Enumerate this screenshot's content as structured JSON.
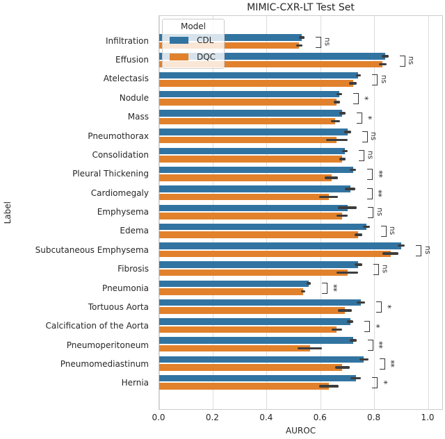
{
  "title": "MIMIC-CXR-LT Test Set",
  "colors": {
    "cdl_blue": "#3274a1",
    "dqc_orange": "#e1812c",
    "error_bar": "#3d3d3d",
    "gridline": "#dcdcdc",
    "spine": "#cccccc",
    "text": "#262626"
  },
  "chart_data": {
    "type": "bar",
    "orientation": "horizontal",
    "title": "MIMIC-CXR-LT Test Set",
    "xlabel": "AUROC",
    "ylabel": "Label",
    "xlim": [
      0.0,
      1.057
    ],
    "grid": true,
    "xticks": [
      0.0,
      0.2,
      0.4,
      0.6,
      0.8,
      1.0
    ],
    "xticklabels": [
      "0.0",
      "0.2",
      "0.4",
      "0.6",
      "0.8",
      "1.0"
    ],
    "legend": {
      "title": "Model",
      "position": "upper left",
      "entries": [
        {
          "name": "CDL",
          "color": "#3274a1"
        },
        {
          "name": "DQC",
          "color": "#e1812c"
        }
      ]
    },
    "categories": [
      "Infiltration",
      "Effusion",
      "Atelectasis",
      "Nodule",
      "Mass",
      "Pneumothorax",
      "Consolidation",
      "Pleural Thickening",
      "Cardiomegaly",
      "Emphysema",
      "Edema",
      "Subcutaneous Emphysema",
      "Fibrosis",
      "Pneumonia",
      "Tortuous Aorta",
      "Calcification of the Aorta",
      "Pneumoperitoneum",
      "Pneumomediastinum",
      "Hernia"
    ],
    "series": [
      {
        "name": "CDL",
        "color": "#3274a1",
        "values": [
          0.53,
          0.84,
          0.74,
          0.67,
          0.68,
          0.7,
          0.69,
          0.72,
          0.71,
          0.7,
          0.77,
          0.9,
          0.74,
          0.555,
          0.75,
          0.71,
          0.72,
          0.76,
          0.73
        ],
        "errors": [
          0.01,
          0.012,
          0.01,
          0.01,
          0.012,
          0.012,
          0.01,
          0.012,
          0.02,
          0.035,
          0.012,
          0.013,
          0.015,
          0.008,
          0.015,
          0.012,
          0.013,
          0.017,
          0.02
        ]
      },
      {
        "name": "DQC",
        "color": "#e1812c",
        "values": [
          0.52,
          0.83,
          0.72,
          0.66,
          0.655,
          0.66,
          0.68,
          0.64,
          0.63,
          0.68,
          0.74,
          0.86,
          0.7,
          0.535,
          0.69,
          0.66,
          0.56,
          0.68,
          0.63
        ],
        "errors": [
          0.012,
          0.014,
          0.015,
          0.012,
          0.018,
          0.04,
          0.012,
          0.025,
          0.035,
          0.02,
          0.015,
          0.03,
          0.04,
          0.008,
          0.025,
          0.02,
          0.045,
          0.027,
          0.036
        ]
      }
    ],
    "significance": [
      "ns",
      "ns",
      "ns",
      "*",
      "*",
      "ns",
      "ns",
      "**",
      "**",
      "ns",
      "ns",
      "ns",
      "ns",
      "**",
      "*",
      "*",
      "**",
      "**",
      "*"
    ]
  }
}
